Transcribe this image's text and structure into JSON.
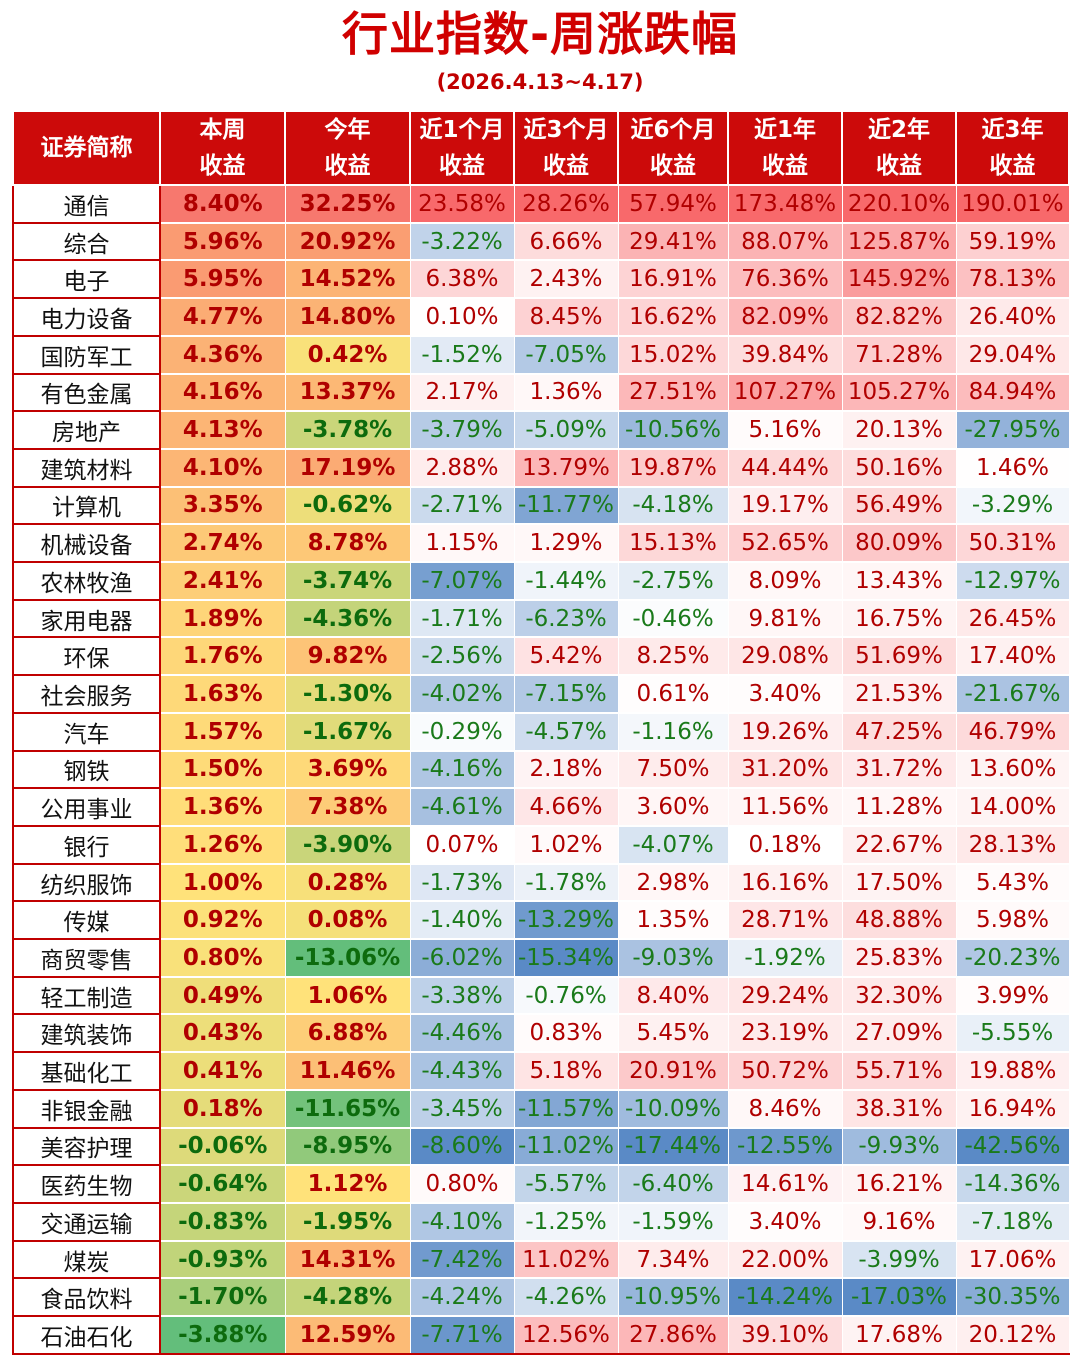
{
  "title": "行业指数-周涨跌幅",
  "subtitle": "(2026.4.13~4.17)",
  "headers": [
    [
      "证券简称"
    ],
    [
      "本周",
      "收益"
    ],
    [
      "今年",
      "收益"
    ],
    [
      "近1个月",
      "收益"
    ],
    [
      "近3个月",
      "收益"
    ],
    [
      "近6个月",
      "收益"
    ],
    [
      "近1年",
      "收益"
    ],
    [
      "近2年",
      "收益"
    ],
    [
      "近3年",
      "收益"
    ]
  ],
  "rows": [
    [
      "通信",
      "8.40%",
      "32.25%",
      "23.58%",
      "28.26%",
      "57.94%",
      "173.48%",
      "220.10%",
      "190.01%"
    ],
    [
      "综合",
      "5.96%",
      "20.92%",
      "-3.22%",
      "6.66%",
      "29.41%",
      "88.07%",
      "125.87%",
      "59.19%"
    ],
    [
      "电子",
      "5.95%",
      "14.52%",
      "6.38%",
      "2.43%",
      "16.91%",
      "76.36%",
      "145.92%",
      "78.13%"
    ],
    [
      "电力设备",
      "4.77%",
      "14.80%",
      "0.10%",
      "8.45%",
      "16.62%",
      "82.09%",
      "82.82%",
      "26.40%"
    ],
    [
      "国防军工",
      "4.36%",
      "0.42%",
      "-1.52%",
      "-7.05%",
      "15.02%",
      "39.84%",
      "71.28%",
      "29.04%"
    ],
    [
      "有色金属",
      "4.16%",
      "13.37%",
      "2.17%",
      "1.36%",
      "27.51%",
      "107.27%",
      "105.27%",
      "84.94%"
    ],
    [
      "房地产",
      "4.13%",
      "-3.78%",
      "-3.79%",
      "-5.09%",
      "-10.56%",
      "5.16%",
      "20.13%",
      "-27.95%"
    ],
    [
      "建筑材料",
      "4.10%",
      "17.19%",
      "2.88%",
      "13.79%",
      "19.87%",
      "44.44%",
      "50.16%",
      "1.46%"
    ],
    [
      "计算机",
      "3.35%",
      "-0.62%",
      "-2.71%",
      "-11.77%",
      "-4.18%",
      "19.17%",
      "56.49%",
      "-3.29%"
    ],
    [
      "机械设备",
      "2.74%",
      "8.78%",
      "1.15%",
      "1.29%",
      "15.13%",
      "52.65%",
      "80.09%",
      "50.31%"
    ],
    [
      "农林牧渔",
      "2.41%",
      "-3.74%",
      "-7.07%",
      "-1.44%",
      "-2.75%",
      "8.09%",
      "13.43%",
      "-12.97%"
    ],
    [
      "家用电器",
      "1.89%",
      "-4.36%",
      "-1.71%",
      "-6.23%",
      "-0.46%",
      "9.81%",
      "16.75%",
      "26.45%"
    ],
    [
      "环保",
      "1.76%",
      "9.82%",
      "-2.56%",
      "5.42%",
      "8.25%",
      "29.08%",
      "51.69%",
      "17.40%"
    ],
    [
      "社会服务",
      "1.63%",
      "-1.30%",
      "-4.02%",
      "-7.15%",
      "0.61%",
      "3.40%",
      "21.53%",
      "-21.67%"
    ],
    [
      "汽车",
      "1.57%",
      "-1.67%",
      "-0.29%",
      "-4.57%",
      "-1.16%",
      "19.26%",
      "47.25%",
      "46.79%"
    ],
    [
      "钢铁",
      "1.50%",
      "3.69%",
      "-4.16%",
      "2.18%",
      "7.50%",
      "31.20%",
      "31.72%",
      "13.60%"
    ],
    [
      "公用事业",
      "1.36%",
      "7.38%",
      "-4.61%",
      "4.66%",
      "3.60%",
      "11.56%",
      "11.28%",
      "14.00%"
    ],
    [
      "银行",
      "1.26%",
      "-3.90%",
      "0.07%",
      "1.02%",
      "-4.07%",
      "0.18%",
      "22.67%",
      "28.13%"
    ],
    [
      "纺织服饰",
      "1.00%",
      "0.28%",
      "-1.73%",
      "-1.78%",
      "2.98%",
      "16.16%",
      "17.50%",
      "5.43%"
    ],
    [
      "传媒",
      "0.92%",
      "0.08%",
      "-1.40%",
      "-13.29%",
      "1.35%",
      "28.71%",
      "48.88%",
      "5.98%"
    ],
    [
      "商贸零售",
      "0.80%",
      "-13.06%",
      "-6.02%",
      "-15.34%",
      "-9.03%",
      "-1.92%",
      "25.83%",
      "-20.23%"
    ],
    [
      "轻工制造",
      "0.49%",
      "1.06%",
      "-3.38%",
      "-0.76%",
      "8.40%",
      "29.24%",
      "32.30%",
      "3.99%"
    ],
    [
      "建筑装饰",
      "0.43%",
      "6.88%",
      "-4.46%",
      "0.83%",
      "5.45%",
      "23.19%",
      "27.09%",
      "-5.55%"
    ],
    [
      "基础化工",
      "0.41%",
      "11.46%",
      "-4.43%",
      "5.18%",
      "20.91%",
      "50.72%",
      "55.71%",
      "19.88%"
    ],
    [
      "非银金融",
      "0.18%",
      "-11.65%",
      "-3.45%",
      "-11.57%",
      "-10.09%",
      "8.46%",
      "38.31%",
      "16.94%"
    ],
    [
      "美容护理",
      "-0.06%",
      "-8.95%",
      "-8.60%",
      "-11.02%",
      "-17.44%",
      "-12.55%",
      "-9.93%",
      "-42.56%"
    ],
    [
      "医药生物",
      "-0.64%",
      "1.12%",
      "0.80%",
      "-5.57%",
      "-6.40%",
      "14.61%",
      "16.21%",
      "-14.36%"
    ],
    [
      "交通运输",
      "-0.83%",
      "-1.95%",
      "-4.10%",
      "-1.25%",
      "-1.59%",
      "3.40%",
      "9.16%",
      "-7.18%"
    ],
    [
      "煤炭",
      "-0.93%",
      "14.31%",
      "-7.42%",
      "11.02%",
      "7.34%",
      "22.00%",
      "-3.99%",
      "17.06%"
    ],
    [
      "食品饮料",
      "-1.70%",
      "-4.28%",
      "-4.24%",
      "-4.26%",
      "-10.95%",
      "-14.24%",
      "-17.03%",
      "-30.35%"
    ],
    [
      "石油石化",
      "-3.88%",
      "12.59%",
      "-7.71%",
      "12.56%",
      "27.86%",
      "39.10%",
      "17.68%",
      "20.12%"
    ]
  ]
}
